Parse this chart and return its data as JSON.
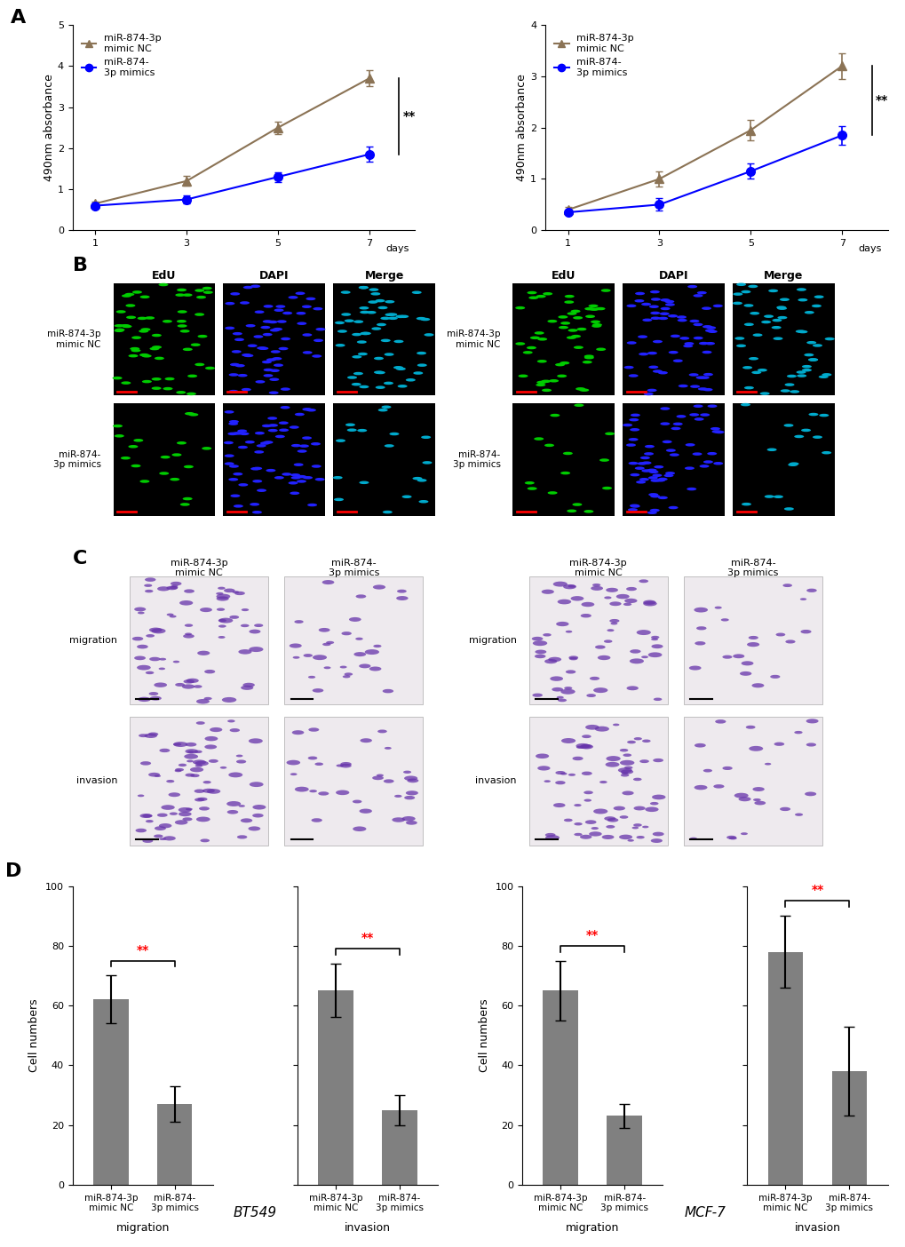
{
  "panel_A_left": {
    "days": [
      1,
      3,
      5,
      7
    ],
    "nc_values": [
      0.65,
      1.2,
      2.5,
      3.7
    ],
    "nc_errors": [
      0.05,
      0.12,
      0.15,
      0.2
    ],
    "mimic_values": [
      0.6,
      0.75,
      1.3,
      1.85
    ],
    "mimic_errors": [
      0.04,
      0.1,
      0.12,
      0.18
    ],
    "ylabel": "490nm absorbance",
    "ylim": [
      0,
      5
    ],
    "yticks": [
      0,
      1,
      2,
      3,
      4,
      5
    ],
    "sig_label": "**"
  },
  "panel_A_right": {
    "days": [
      1,
      3,
      5,
      7
    ],
    "nc_values": [
      0.4,
      1.0,
      1.95,
      3.2
    ],
    "nc_errors": [
      0.05,
      0.15,
      0.2,
      0.25
    ],
    "mimic_values": [
      0.35,
      0.5,
      1.15,
      1.85
    ],
    "mimic_errors": [
      0.04,
      0.12,
      0.15,
      0.18
    ],
    "ylabel": "490nm absorbance",
    "ylim": [
      0,
      4
    ],
    "yticks": [
      0,
      1,
      2,
      3,
      4
    ],
    "sig_label": "**"
  },
  "panel_D": {
    "bt549_migration": {
      "nc_mean": 62,
      "nc_err": 8,
      "mimic_mean": 27,
      "mimic_err": 6
    },
    "bt549_invasion": {
      "nc_mean": 65,
      "nc_err": 9,
      "mimic_mean": 25,
      "mimic_err": 5
    },
    "mcf7_migration": {
      "nc_mean": 65,
      "nc_err": 10,
      "mimic_mean": 23,
      "mimic_err": 4
    },
    "mcf7_invasion": {
      "nc_mean": 78,
      "nc_err": 12,
      "mimic_mean": 38,
      "mimic_err": 15
    },
    "ylabel": "Cell numbers",
    "yticks": [
      0,
      20,
      40,
      60,
      80,
      100
    ],
    "sig_label": "**",
    "xtick_labels": [
      "miR-874-3p\nmimic NC",
      "miR-874-\n3p mimics"
    ],
    "subtitles": [
      "migration",
      "invasion",
      "migration",
      "invasion"
    ]
  },
  "colors": {
    "nc_line": "#8B7355",
    "mimic_line": "#0000FF",
    "bar_gray": "#808080",
    "sig_red": "#FF0000"
  },
  "legend": {
    "nc_label": "miR-874-3p\nmimic NC",
    "mimic_label": "miR-874-\n3p mimics"
  },
  "cell_line_labels": {
    "bt549": "BT549",
    "mcf7": "MCF-7"
  }
}
